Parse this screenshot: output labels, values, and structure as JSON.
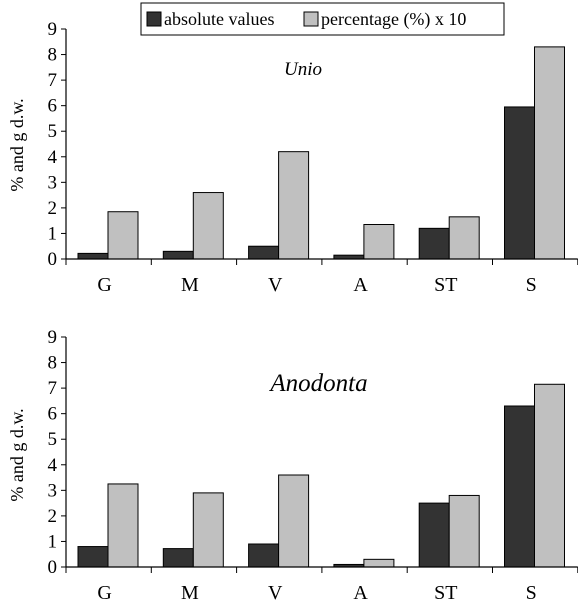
{
  "legend": {
    "absolute_label": "absolute values",
    "percentage_label": "percentage (%) x 10"
  },
  "colors": {
    "absolute": "#333333",
    "percentage": "#c0c0c0",
    "axis": "#000000"
  },
  "chart_data": [
    {
      "type": "bar",
      "title": "Unio",
      "ylabel": "% and g d.w.",
      "ylim": [
        0,
        9
      ],
      "yticks": [
        "0",
        "1",
        "2",
        "3",
        "4",
        "5",
        "6",
        "7",
        "8",
        "9"
      ],
      "categories": [
        "G",
        "M",
        "V",
        "A",
        "ST",
        "S"
      ],
      "series": [
        {
          "name": "absolute values",
          "values": [
            0.22,
            0.3,
            0.5,
            0.15,
            1.2,
            5.95
          ]
        },
        {
          "name": "percentage (%) x 10",
          "values": [
            1.85,
            2.6,
            4.2,
            1.35,
            1.65,
            8.3
          ]
        }
      ],
      "legend_position": "top-center",
      "grid": false
    },
    {
      "type": "bar",
      "title": "Anodonta",
      "ylabel": "% and g d.w.",
      "ylim": [
        0,
        9
      ],
      "yticks": [
        "0",
        "1",
        "2",
        "3",
        "4",
        "5",
        "6",
        "7",
        "8",
        "9"
      ],
      "categories": [
        "G",
        "M",
        "V",
        "A",
        "ST",
        "S"
      ],
      "series": [
        {
          "name": "absolute values",
          "values": [
            0.8,
            0.72,
            0.9,
            0.1,
            2.5,
            6.3
          ]
        },
        {
          "name": "percentage (%) x 10",
          "values": [
            3.25,
            2.9,
            3.6,
            0.3,
            2.8,
            7.15
          ]
        }
      ],
      "grid": false
    }
  ]
}
